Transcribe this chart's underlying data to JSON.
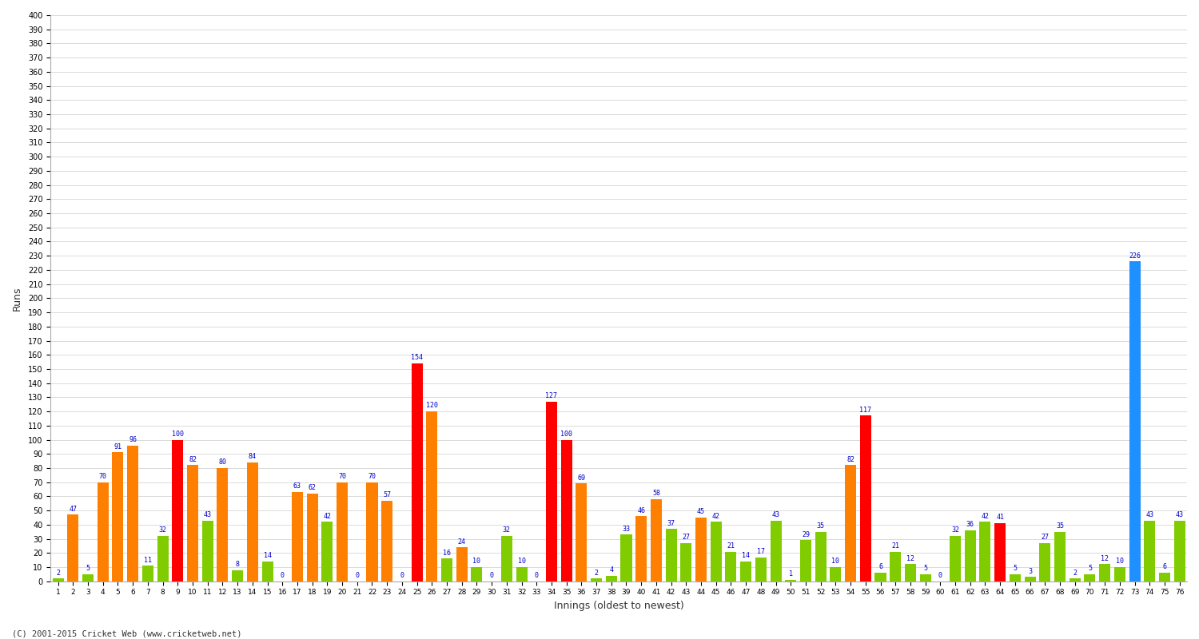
{
  "xlabel": "Innings (oldest to newest)",
  "ylabel": "Runs",
  "footer": "(C) 2001-2015 Cricket Web (www.cricketweb.net)",
  "ylim": [
    0,
    400
  ],
  "background_color": "#ffffff",
  "grid_color": "#cccccc",
  "innings": [
    1,
    2,
    3,
    4,
    5,
    6,
    7,
    8,
    9,
    10,
    11,
    12,
    13,
    14,
    15,
    16,
    17,
    18,
    19,
    20,
    21,
    22,
    23,
    24,
    25,
    26,
    27,
    28,
    29,
    30,
    31,
    32,
    33,
    34,
    35,
    36,
    37,
    38,
    39,
    40,
    41,
    42,
    43,
    44,
    45,
    46,
    47,
    48,
    49,
    50,
    51,
    52,
    53,
    54,
    55,
    56,
    57,
    58,
    59,
    60,
    61,
    62,
    63,
    64,
    65,
    66,
    67,
    68,
    69,
    70,
    71,
    72,
    73,
    74,
    75,
    76
  ],
  "scores": [
    2,
    47,
    5,
    70,
    91,
    96,
    11,
    32,
    100,
    82,
    43,
    80,
    8,
    84,
    14,
    0,
    63,
    62,
    42,
    70,
    0,
    70,
    57,
    0,
    154,
    120,
    16,
    24,
    10,
    0,
    32,
    10,
    0,
    127,
    100,
    69,
    2,
    4,
    33,
    46,
    58,
    37,
    27,
    45,
    42,
    21,
    14,
    17,
    43,
    1,
    29,
    35,
    10,
    82,
    117,
    6,
    21,
    12,
    5,
    0,
    32,
    36,
    42,
    41,
    5,
    3,
    27,
    35,
    2,
    5,
    12,
    10,
    226,
    43,
    6,
    43
  ],
  "colors": [
    "#80cc00",
    "#ff8000",
    "#80cc00",
    "#ff8000",
    "#ff8000",
    "#ff8000",
    "#80cc00",
    "#80cc00",
    "#ff0000",
    "#ff8000",
    "#80cc00",
    "#ff8000",
    "#80cc00",
    "#ff8000",
    "#80cc00",
    "#80cc00",
    "#ff8000",
    "#ff8000",
    "#80cc00",
    "#ff8000",
    "#80cc00",
    "#ff8000",
    "#ff8000",
    "#80cc00",
    "#ff0000",
    "#ff8000",
    "#80cc00",
    "#ff8000",
    "#80cc00",
    "#80cc00",
    "#80cc00",
    "#80cc00",
    "#80cc00",
    "#ff0000",
    "#ff0000",
    "#ff8000",
    "#80cc00",
    "#80cc00",
    "#80cc00",
    "#ff8000",
    "#ff8000",
    "#80cc00",
    "#80cc00",
    "#ff8000",
    "#80cc00",
    "#80cc00",
    "#80cc00",
    "#80cc00",
    "#80cc00",
    "#80cc00",
    "#80cc00",
    "#80cc00",
    "#80cc00",
    "#ff8000",
    "#ff0000",
    "#80cc00",
    "#80cc00",
    "#80cc00",
    "#80cc00",
    "#80cc00",
    "#80cc00",
    "#80cc00",
    "#80cc00",
    "#ff0000",
    "#80cc00",
    "#80cc00",
    "#80cc00",
    "#80cc00",
    "#80cc00",
    "#80cc00",
    "#80cc00",
    "#80cc00",
    "#1e90ff",
    "#80cc00",
    "#80cc00",
    "#80cc00"
  ],
  "label_color": "#0000cc",
  "label_fontsize": 6.0,
  "bar_width": 0.75
}
